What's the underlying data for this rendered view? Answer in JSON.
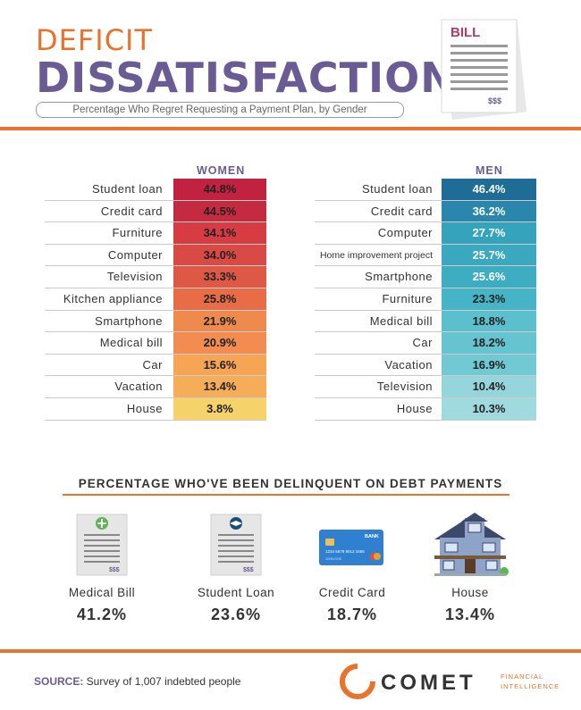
{
  "header": {
    "title_line1": "DEFICIT",
    "title_line2": "DISSATISFACTION",
    "subtitle": "Percentage Who Regret Requesting a Payment Plan, by Gender",
    "bill_icon_text": "BILL",
    "bill_icon_amount": "$$$"
  },
  "chart_data": [
    {
      "type": "table",
      "title": "WOMEN",
      "categories": [
        "Student loan",
        "Credit card",
        "Furniture",
        "Computer",
        "Television",
        "Kitchen appliance",
        "Smartphone",
        "Medical bill",
        "Car",
        "Vacation",
        "House"
      ],
      "values": [
        44.8,
        44.5,
        34.1,
        34.0,
        33.3,
        25.8,
        21.9,
        20.9,
        15.6,
        13.4,
        3.8
      ],
      "value_labels": [
        "44.8%",
        "44.5%",
        "34.1%",
        "34.0%",
        "33.3%",
        "25.8%",
        "21.9%",
        "20.9%",
        "15.6%",
        "13.4%",
        "3.8%"
      ],
      "colors": [
        "#c0223f",
        "#c42a40",
        "#d63c42",
        "#d94a44",
        "#de5846",
        "#e86c45",
        "#ef8a4e",
        "#f28c50",
        "#f6a554",
        "#f6ad58",
        "#f6d26a"
      ]
    },
    {
      "type": "table",
      "title": "MEN",
      "categories": [
        "Student loan",
        "Credit card",
        "Computer",
        "Home improvement project",
        "Smartphone",
        "Furniture",
        "Medical bill",
        "Car",
        "Vacation",
        "Television",
        "House"
      ],
      "values": [
        46.4,
        36.2,
        27.7,
        25.7,
        25.6,
        23.3,
        18.8,
        18.2,
        16.9,
        10.4,
        10.3
      ],
      "value_labels": [
        "46.4%",
        "36.2%",
        "27.7%",
        "25.7%",
        "25.6%",
        "23.3%",
        "18.8%",
        "18.2%",
        "16.9%",
        "10.4%",
        "10.3%"
      ],
      "colors": [
        "#1f6d96",
        "#2b86ab",
        "#36a3bd",
        "#3aa9c0",
        "#3eadc2",
        "#45b4c6",
        "#5bbfcd",
        "#66c4d0",
        "#70c9d3",
        "#94d6dc",
        "#a0dadf"
      ]
    },
    {
      "type": "table",
      "title": "PERCENTAGE WHO'VE BEEN DELINQUENT ON DEBT PAYMENTS",
      "categories": [
        "Medical Bill",
        "Student Loan",
        "Credit Card",
        "House"
      ],
      "values": [
        41.2,
        23.6,
        18.7,
        13.4
      ],
      "value_labels": [
        "41.2%",
        "23.6%",
        "18.7%",
        "13.4%"
      ],
      "icons": [
        "medical-document-icon",
        "graduation-document-icon",
        "credit-card-icon",
        "house-icon"
      ]
    }
  ],
  "credit_card_icon": {
    "bank": "BANK",
    "number_text": "1234  5678  9012  3456",
    "holder_text": "JOHN DOE"
  },
  "doc_icon_amount": "$$$",
  "footer": {
    "source_tag": "SOURCE:",
    "source_text": " Survey of 1,007 indebted people",
    "logo_word": "COMET",
    "logo_sub1": "FINANCIAL",
    "logo_sub2": "INTELLIGENCE"
  },
  "colors": {
    "orange": "#e8732c",
    "purple": "#6b5b95"
  }
}
